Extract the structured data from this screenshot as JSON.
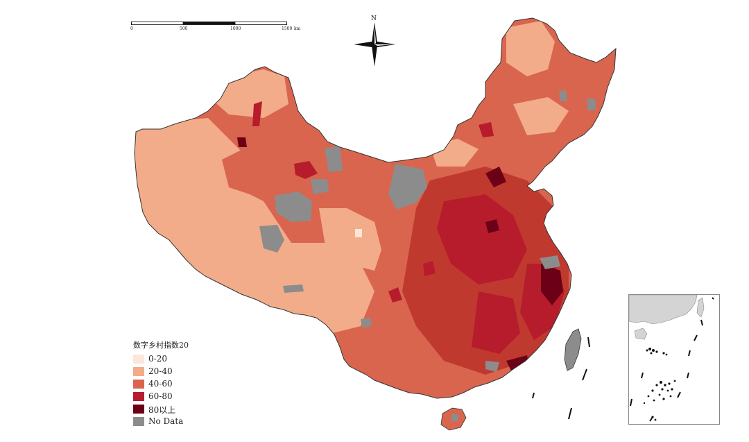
{
  "map": {
    "legend": {
      "title": "数字乡村指数20",
      "items": [
        {
          "label": "0-20",
          "color": "#fbe6da"
        },
        {
          "label": "20-40",
          "color": "#f2ac89"
        },
        {
          "label": "40-60",
          "color": "#d9654f"
        },
        {
          "label": "60-80",
          "color": "#b71c2c"
        },
        {
          "label": "80以上",
          "color": "#6b0016"
        },
        {
          "label": "No Data",
          "color": "#8c8c8c"
        }
      ]
    },
    "scale_bar": {
      "ticks": [
        "0",
        "500",
        "1000",
        "1500"
      ],
      "unit": "km"
    },
    "north_arrow": {
      "label": "N"
    },
    "colors": {
      "border": "#333333",
      "background": "#ffffff",
      "inset_land": "#d4d4d4"
    }
  }
}
